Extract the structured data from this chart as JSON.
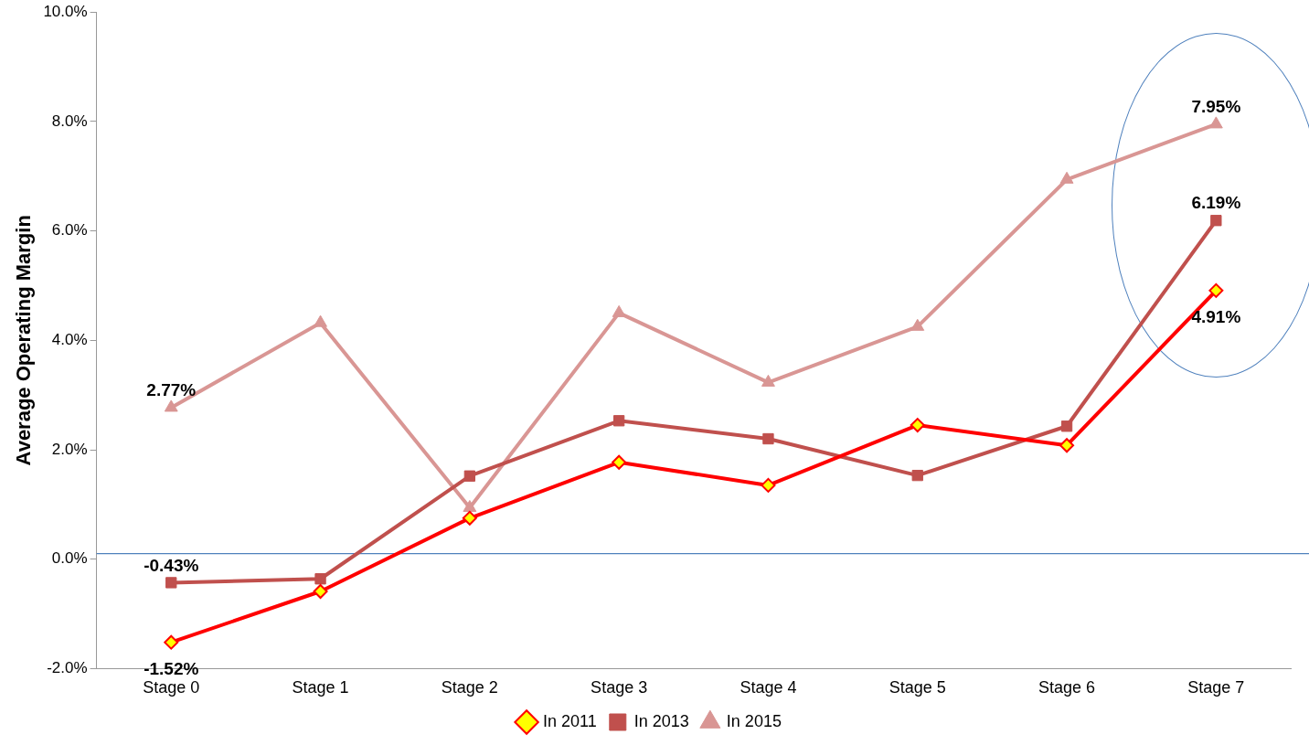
{
  "chart_data": {
    "type": "line",
    "ylabel": "Average Operating Margin",
    "categories": [
      "Stage 0",
      "Stage 1",
      "Stage 2",
      "Stage 3",
      "Stage 4",
      "Stage 5",
      "Stage 6",
      "Stage 7"
    ],
    "series": [
      {
        "name": "In 2011",
        "color": "#ff0000",
        "marker": "diamond",
        "values": [
          -1.52,
          -0.59,
          0.75,
          1.77,
          1.35,
          2.45,
          2.08,
          4.91
        ],
        "value_labels": [
          "-1.52%",
          null,
          null,
          null,
          null,
          null,
          null,
          "4.91%"
        ]
      },
      {
        "name": "In 2013",
        "color": "#c0504d",
        "marker": "square",
        "values": [
          -0.43,
          -0.36,
          1.52,
          2.53,
          2.2,
          1.53,
          2.43,
          6.19
        ],
        "value_labels": [
          "-0.43%",
          null,
          null,
          null,
          null,
          null,
          null,
          "6.19%"
        ]
      },
      {
        "name": "In 2015",
        "color": "#d99694",
        "marker": "triangle",
        "values": [
          2.77,
          4.32,
          0.94,
          4.5,
          3.23,
          4.25,
          6.94,
          7.95
        ],
        "value_labels": [
          "2.77%",
          null,
          null,
          null,
          null,
          null,
          null,
          "7.95%"
        ]
      }
    ],
    "ylim": [
      -2,
      10
    ],
    "yticks": [
      {
        "value": -2,
        "label": "-2.0%"
      },
      {
        "value": 0,
        "label": "0.0%"
      },
      {
        "value": 2,
        "label": "2.0%"
      },
      {
        "value": 4,
        "label": "4.0%"
      },
      {
        "value": 6,
        "label": "6.0%"
      },
      {
        "value": 8,
        "label": "8.0%"
      },
      {
        "value": 10,
        "label": "10.0%"
      }
    ],
    "ref_lines": [
      {
        "axis": "y",
        "value": 0.1,
        "color": "#4f81bd"
      }
    ],
    "grid": false,
    "legend": "bottom",
    "line_style": "solid"
  }
}
